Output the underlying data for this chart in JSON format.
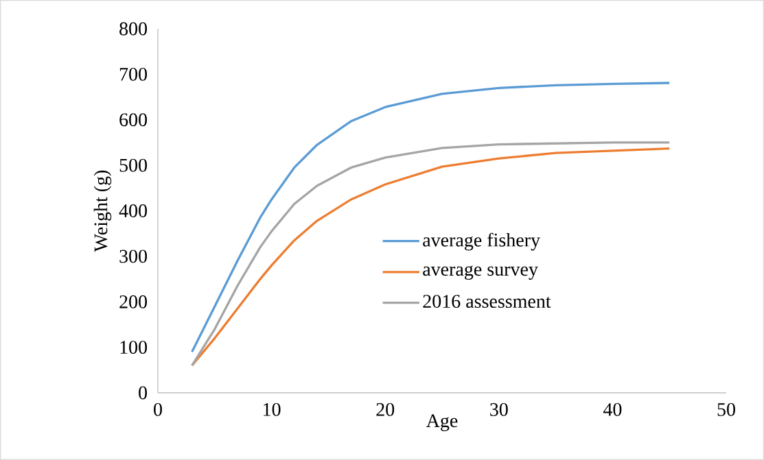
{
  "chart_data": {
    "type": "line",
    "xlabel": "Age",
    "ylabel": "Weight (g)",
    "x": [
      3,
      5,
      7,
      9,
      10,
      12,
      14,
      17,
      20,
      25,
      30,
      35,
      40,
      45
    ],
    "series": [
      {
        "name": "average fishery",
        "color": "#5b9bd5",
        "values": [
          90,
          190,
          290,
          385,
          425,
          495,
          545,
          597,
          628,
          657,
          670,
          676,
          679,
          681
        ]
      },
      {
        "name": "average survey",
        "color": "#ed7d31",
        "values": [
          60,
          120,
          185,
          250,
          280,
          335,
          378,
          425,
          458,
          497,
          515,
          527,
          532,
          537
        ]
      },
      {
        "name": "2016 assessment",
        "color": "#a5a5a5",
        "values": [
          60,
          140,
          235,
          320,
          355,
          415,
          455,
          495,
          517,
          538,
          546,
          548,
          550,
          550
        ]
      }
    ],
    "xlim": [
      0,
      50
    ],
    "xticks": [
      0,
      10,
      20,
      30,
      40,
      50
    ],
    "ylim": [
      0,
      800
    ],
    "yticks": [
      0,
      100,
      200,
      300,
      400,
      500,
      600,
      700,
      800
    ],
    "grid": false,
    "legend": "right",
    "marker": "none",
    "line_style": "solid"
  }
}
